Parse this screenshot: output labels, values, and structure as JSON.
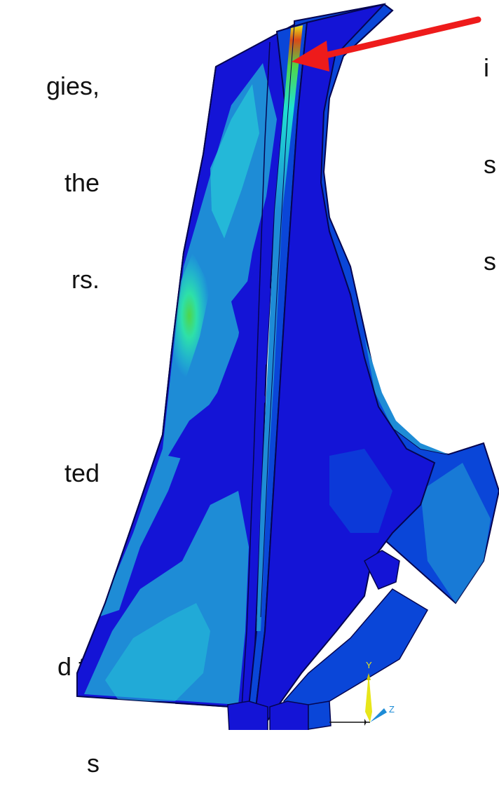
{
  "left_text": {
    "lines": [
      "gies,",
      "the",
      "rs.",
      "",
      "ted",
      "",
      "d to",
      "s"
    ]
  },
  "right_text": {
    "lines": [
      "i",
      "s",
      "s"
    ]
  },
  "axis_triad": {
    "y_label": "Y",
    "z_label": "Z"
  },
  "colors": {
    "deep_blue": "#1414d6",
    "medium_blue": "#0a46d8",
    "sky_blue": "#1e8cd6",
    "light_cyan": "#25c3d8",
    "cyan": "#1fe0d3",
    "green": "#4fd64a",
    "yellow": "#e8e61a",
    "red_arrow": "#ee1b1b"
  }
}
